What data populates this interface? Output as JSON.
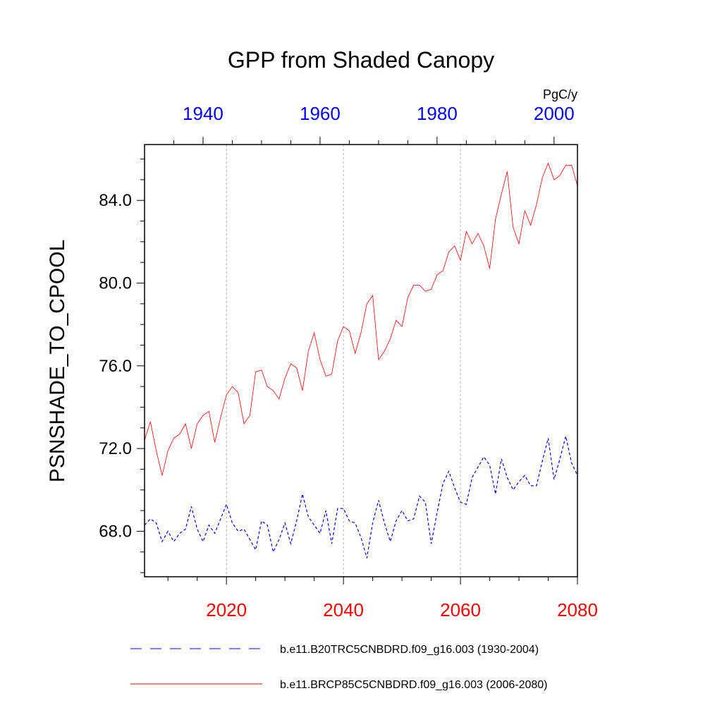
{
  "chart_data": {
    "type": "line",
    "title": "GPP from Shaded Canopy",
    "units": "PgC/y",
    "ylabel": "PSNSHADE_TO_CPOOL",
    "ylim": [
      65.8,
      86.7
    ],
    "yticks": [
      68.0,
      72.0,
      76.0,
      80.0,
      84.0
    ],
    "ytick_labels": [
      "68.0",
      "72.0",
      "76.0",
      "80.0",
      "84.0"
    ],
    "x_bottom": {
      "range": [
        2006,
        2080
      ],
      "ticks": [
        2020,
        2040,
        2060,
        2080
      ],
      "labels": [
        "2020",
        "2040",
        "2060",
        "2080"
      ],
      "color": "#ff0000"
    },
    "x_top": {
      "range": [
        1930,
        2004
      ],
      "ticks": [
        1940,
        1960,
        1980,
        2000
      ],
      "labels": [
        "1940",
        "1960",
        "1980",
        "2000"
      ],
      "color": "#0000ff"
    },
    "grid_x": [
      2020,
      2040,
      2060
    ],
    "series": [
      {
        "name": "b.e11.B20TRC5CNBDRD.f09_g16.003 (1930-2004)",
        "axis": "top",
        "x_start": 1930,
        "color": "#0000ff",
        "dash": "dashed",
        "values": [
          68.3,
          68.6,
          68.4,
          67.5,
          68.0,
          67.5,
          67.9,
          68.1,
          69.2,
          68.1,
          67.5,
          68.3,
          67.9,
          68.6,
          69.3,
          68.4,
          68.0,
          68.1,
          67.6,
          67.1,
          68.5,
          68.3,
          67.0,
          67.6,
          68.4,
          67.4,
          68.5,
          69.8,
          68.7,
          68.3,
          67.9,
          69.0,
          67.4,
          69.1,
          69.1,
          68.5,
          68.4,
          67.7,
          66.7,
          68.4,
          69.5,
          68.4,
          67.5,
          68.5,
          69.0,
          68.5,
          68.6,
          69.7,
          69.4,
          67.4,
          68.9,
          70.3,
          70.9,
          70.1,
          69.4,
          69.3,
          70.6,
          71.1,
          71.6,
          71.2,
          69.8,
          71.5,
          70.6,
          70.0,
          70.4,
          70.7,
          70.2,
          70.2,
          71.4,
          72.5,
          70.5,
          71.5,
          72.6,
          71.3,
          70.7
        ]
      },
      {
        "name": "b.e11.BRCP85C5CNBDRD.f09_g16.003 (2006-2080)",
        "axis": "bottom",
        "x_start": 2006,
        "color": "#ff0000",
        "dash": "solid",
        "values": [
          72.4,
          73.3,
          71.9,
          70.7,
          71.9,
          72.5,
          72.7,
          73.2,
          72.0,
          73.2,
          73.6,
          73.8,
          72.3,
          73.5,
          74.6,
          75.0,
          74.7,
          73.2,
          73.6,
          75.7,
          75.8,
          75.0,
          74.8,
          74.4,
          75.4,
          76.1,
          75.9,
          74.8,
          76.7,
          77.6,
          76.3,
          75.5,
          75.6,
          77.2,
          77.9,
          77.7,
          76.6,
          77.6,
          79.0,
          79.4,
          76.3,
          76.7,
          77.3,
          78.2,
          77.9,
          79.3,
          79.9,
          79.9,
          79.6,
          79.7,
          80.4,
          80.6,
          81.5,
          81.8,
          81.1,
          82.5,
          81.9,
          82.4,
          81.8,
          80.7,
          83.1,
          84.3,
          85.4,
          82.7,
          81.9,
          83.5,
          82.8,
          83.8,
          85.1,
          85.8,
          85.0,
          85.2,
          85.7,
          85.7,
          84.7
        ]
      }
    ]
  }
}
